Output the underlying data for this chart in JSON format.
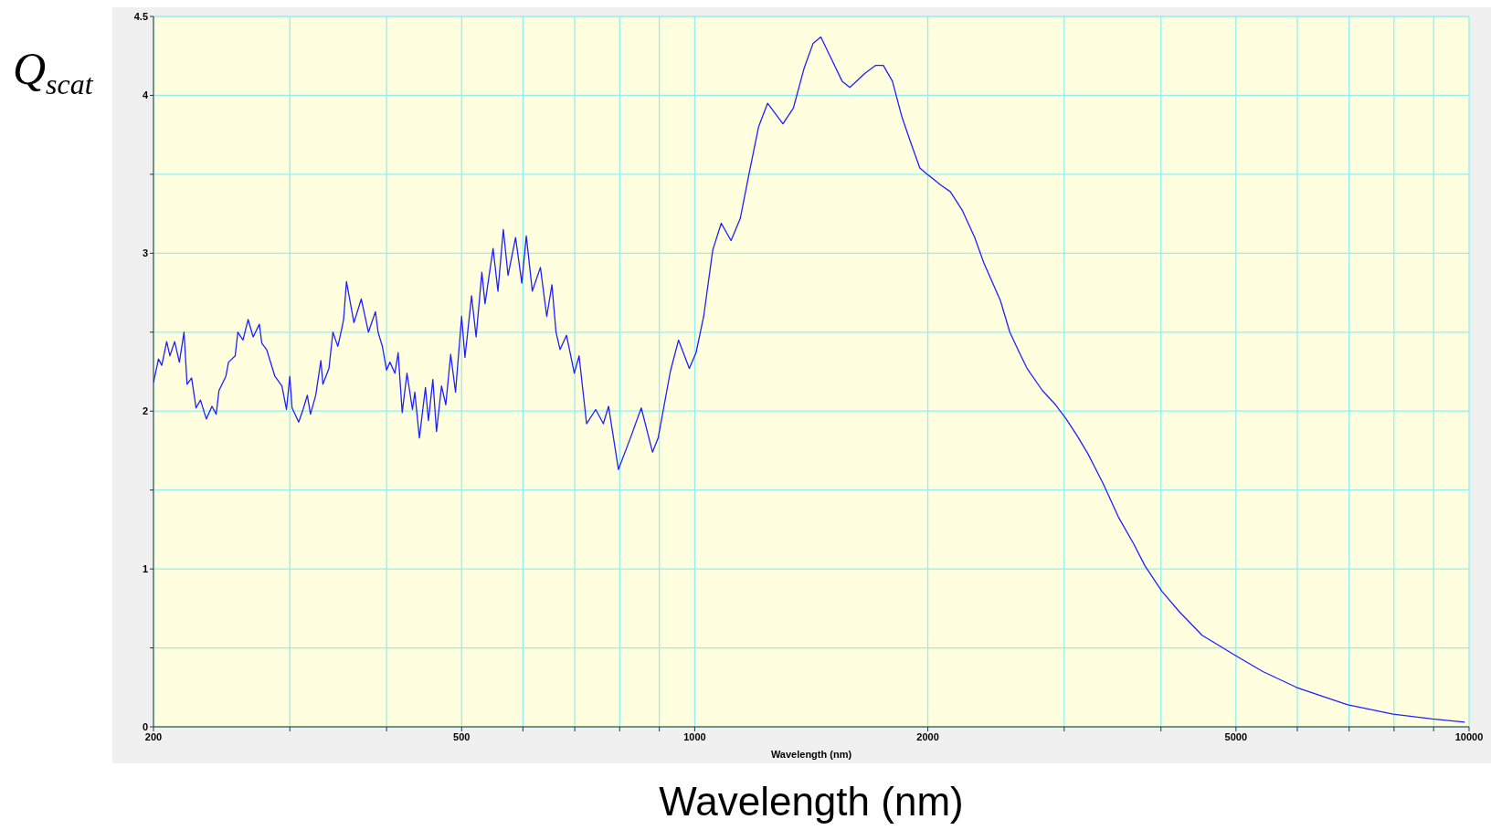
{
  "chart_data": {
    "type": "line",
    "xlabel": "Wavelength (nm)",
    "ylabel": "Q$_{scat}$",
    "annotations": [
      "Wavelength (nm)"
    ],
    "log": "x",
    "grid": true,
    "line_style": "solid",
    "xlim": [
      200,
      10000
    ],
    "ylim": [
      0,
      4.5
    ],
    "xticks": [
      200,
      {
        "value": 300,
        "label": null
      },
      {
        "value": 400,
        "label": null
      },
      500,
      {
        "value": 600,
        "label": null
      },
      {
        "value": 700,
        "label": null
      },
      {
        "value": 800,
        "label": null
      },
      {
        "value": 900,
        "label": null
      },
      1000,
      2000,
      {
        "value": 3000,
        "label": null
      },
      {
        "value": 4000,
        "label": null
      },
      5000,
      {
        "value": 6000,
        "label": null
      },
      {
        "value": 7000,
        "label": null
      },
      {
        "value": 8000,
        "label": null
      },
      {
        "value": 9000,
        "label": null
      },
      10000
    ],
    "yticks": [
      0,
      {
        "value": 0.5,
        "label": null
      },
      1,
      {
        "value": 1.5,
        "label": null
      },
      2,
      {
        "value": 2.5,
        "label": null
      },
      3,
      {
        "value": 3.5,
        "label": null
      },
      4,
      4.5
    ],
    "x": [
      200,
      203,
      205,
      208,
      210,
      213,
      216,
      219,
      221,
      224,
      227,
      230,
      234,
      238,
      241,
      243,
      248,
      250,
      255,
      257,
      261,
      265,
      269,
      274,
      276,
      280,
      287,
      293,
      297,
      300,
      302,
      308,
      312,
      316,
      319,
      324,
      329,
      331,
      337,
      341,
      346,
      350,
      352,
      355,
      363,
      371,
      379,
      387,
      390,
      395,
      400,
      404,
      410,
      414,
      419,
      425,
      432,
      435,
      441,
      449,
      453,
      459,
      464,
      471,
      477,
      484,
      491,
      500,
      505,
      515,
      522,
      531,
      536,
      549,
      557,
      566,
      574,
      587,
      598,
      606,
      617,
      632,
      644,
      654,
      662,
      670,
      683,
      699,
      709,
      725,
      745,
      762,
      774,
      797,
      826,
      853,
      882,
      897,
      930,
      953,
      984,
      1004,
      1027,
      1055,
      1082,
      1114,
      1145,
      1176,
      1209,
      1242,
      1300,
      1341,
      1384,
      1422,
      1455,
      1495,
      1550,
      1586,
      1659,
      1713,
      1752,
      1800,
      1850,
      1901,
      1953,
      1997,
      2081,
      2138,
      2217,
      2299,
      2362,
      2482,
      2552,
      2626,
      2687,
      2812,
      2924,
      3018,
      3112,
      3219,
      3369,
      3524,
      3688,
      3814,
      4010,
      4223,
      4521,
      5000,
      5417,
      5985,
      6495,
      6973,
      7979,
      8967,
      9874
    ],
    "series": [
      {
        "color": "#2020ff",
        "values": [
          2.18,
          2.33,
          2.29,
          2.44,
          2.35,
          2.44,
          2.31,
          2.5,
          2.17,
          2.21,
          2.02,
          2.07,
          1.95,
          2.03,
          1.98,
          2.13,
          2.22,
          2.31,
          2.35,
          2.5,
          2.45,
          2.58,
          2.47,
          2.55,
          2.43,
          2.39,
          2.22,
          2.16,
          2.01,
          2.22,
          2.02,
          1.93,
          2.01,
          2.1,
          1.98,
          2.1,
          2.32,
          2.17,
          2.27,
          2.5,
          2.41,
          2.52,
          2.58,
          2.82,
          2.56,
          2.71,
          2.5,
          2.63,
          2.5,
          2.41,
          2.26,
          2.31,
          2.24,
          2.37,
          1.99,
          2.24,
          2.01,
          2.12,
          1.83,
          2.15,
          1.94,
          2.2,
          1.87,
          2.16,
          2.04,
          2.36,
          2.12,
          2.6,
          2.34,
          2.73,
          2.47,
          2.88,
          2.68,
          3.03,
          2.76,
          3.15,
          2.86,
          3.1,
          2.81,
          3.11,
          2.76,
          2.91,
          2.6,
          2.8,
          2.5,
          2.39,
          2.48,
          2.24,
          2.35,
          1.92,
          2.01,
          1.92,
          2.03,
          1.63,
          1.83,
          2.02,
          1.74,
          1.83,
          2.25,
          2.45,
          2.27,
          2.37,
          2.6,
          3.02,
          3.19,
          3.08,
          3.22,
          3.51,
          3.8,
          3.95,
          3.82,
          3.92,
          4.17,
          4.33,
          4.37,
          4.25,
          4.09,
          4.05,
          4.14,
          4.19,
          4.19,
          4.09,
          3.87,
          3.7,
          3.54,
          3.5,
          3.43,
          3.39,
          3.27,
          3.1,
          2.94,
          2.7,
          2.5,
          2.37,
          2.27,
          2.13,
          2.04,
          1.95,
          1.85,
          1.73,
          1.54,
          1.33,
          1.16,
          1.02,
          0.86,
          0.73,
          0.58,
          0.45,
          0.35,
          0.25,
          0.19,
          0.14,
          0.08,
          0.05,
          0.03
        ]
      }
    ]
  }
}
